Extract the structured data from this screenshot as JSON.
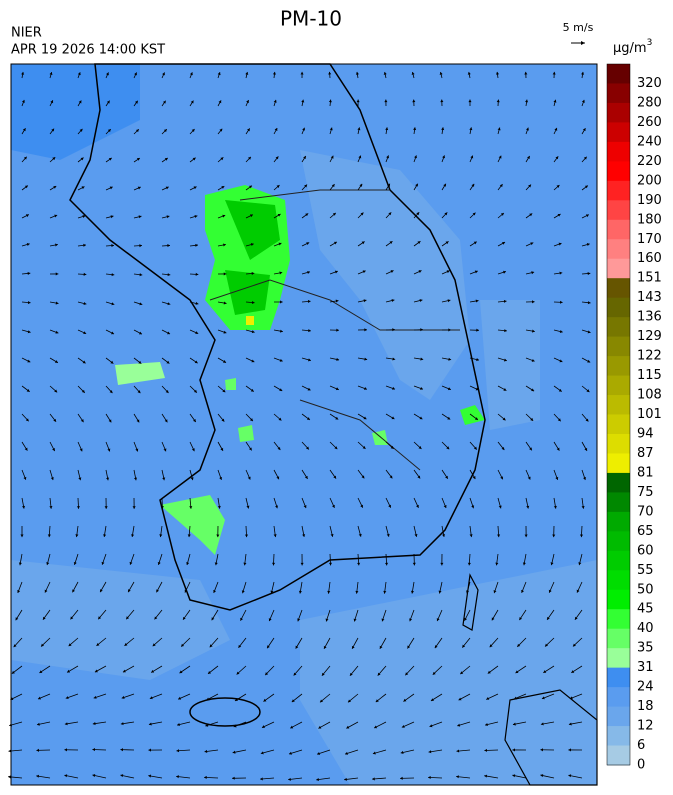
{
  "header": {
    "title": "PM-10",
    "agency": "NIER",
    "timestamp": "APR 19 2026 14:00 KST"
  },
  "wind_reference": {
    "label": "5 m/s"
  },
  "legend": {
    "unit": "μg/m",
    "unit_exponent": "3",
    "labels": [
      320,
      280,
      260,
      240,
      220,
      200,
      190,
      180,
      170,
      160,
      151,
      143,
      136,
      129,
      122,
      115,
      108,
      101,
      94,
      87,
      81,
      75,
      70,
      65,
      60,
      55,
      50,
      45,
      40,
      35,
      31,
      24,
      18,
      12,
      6,
      0
    ],
    "colors": [
      "#660000",
      "#880000",
      "#aa0000",
      "#cc0000",
      "#ee0000",
      "#ff0000",
      "#ff2222",
      "#ff4444",
      "#ff6666",
      "#ff8080",
      "#ff9999",
      "#665500",
      "#666600",
      "#777700",
      "#888800",
      "#999900",
      "#aaaa00",
      "#bbbb00",
      "#cccc00",
      "#dddd00",
      "#eeee00",
      "#006600",
      "#008800",
      "#00aa00",
      "#00bb00",
      "#00cc00",
      "#00dd00",
      "#00ee00",
      "#33ff33",
      "#66ff66",
      "#99ff99",
      "#3e8ef0",
      "#5a9cef",
      "#6aa6ec",
      "#86b9e8",
      "#a6cbe4"
    ]
  }
}
